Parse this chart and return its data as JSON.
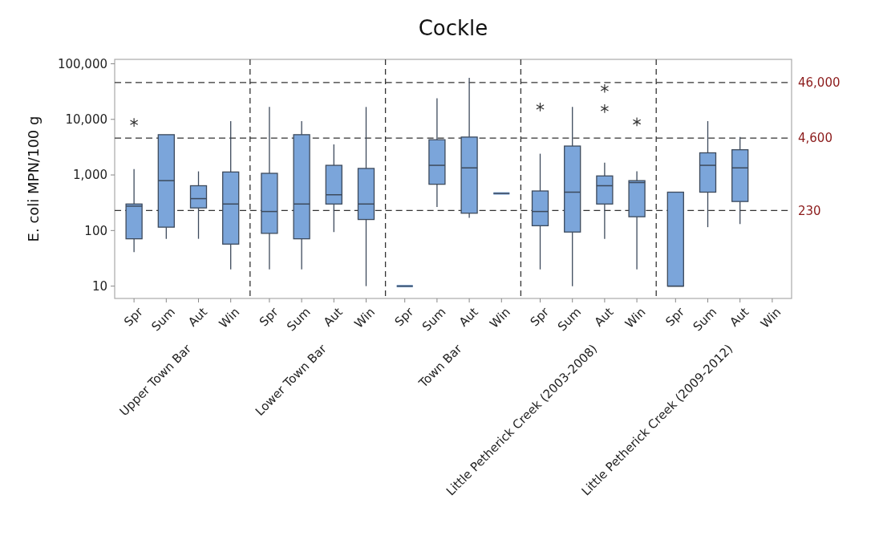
{
  "chart_data": [
    {
      "type": "box",
      "ylabel": "E. coli MPN/100 g",
      "xlabel": "Upper Town Bar",
      "categories": [
        "Spr",
        "Sum",
        "Aut",
        "Win"
      ],
      "color": "#7ba5da",
      "log": true,
      "ylim": [
        6,
        120000
      ],
      "yticks": [
        10,
        100,
        {
          "value": 1000,
          "label": "1,000"
        },
        {
          "value": 10000,
          "label": "10,000"
        },
        {
          "value": 100000,
          "label": "100,000"
        }
      ],
      "ref_lines": [
        {
          "axis": "y",
          "value": 230,
          "line_style": "dashed"
        },
        {
          "axis": "y",
          "value": 4600,
          "line_style": "dashed"
        },
        {
          "axis": "y",
          "value": 46000,
          "line_style": "dashed"
        }
      ],
      "boxes": [
        {
          "low": 41,
          "q1": 71,
          "median": 275,
          "q3": 300,
          "high": 1270,
          "outliers": [
            8800
          ]
        },
        {
          "low": 71,
          "q1": 115,
          "median": 790,
          "q3": 5300,
          "high": 5300
        },
        {
          "low": 71,
          "q1": 255,
          "median": 375,
          "q3": 640,
          "high": 1160
        },
        {
          "low": 20,
          "q1": 57,
          "median": 300,
          "q3": 1130,
          "high": 9300
        }
      ]
    },
    {
      "type": "box",
      "xlabel": "Lower Town Bar",
      "categories": [
        "Spr",
        "Sum",
        "Aut",
        "Win"
      ],
      "color": "#7ba5da",
      "log": true,
      "ylim": [
        6,
        120000
      ],
      "tick_labels": "x",
      "ref_lines": [
        {
          "axis": "y",
          "value": 230,
          "line_style": "dashed"
        },
        {
          "axis": "y",
          "value": 4600,
          "line_style": "dashed"
        },
        {
          "axis": "y",
          "value": 46000,
          "line_style": "dashed"
        }
      ],
      "boxes": [
        {
          "low": 20,
          "q1": 89,
          "median": 220,
          "q3": 1070,
          "high": 16700
        },
        {
          "low": 20,
          "q1": 71,
          "median": 300,
          "q3": 5300,
          "high": 9300
        },
        {
          "low": 94,
          "q1": 300,
          "median": 440,
          "q3": 1490,
          "high": 3540
        },
        {
          "low": 10,
          "q1": 158,
          "median": 300,
          "q3": 1310,
          "high": 16700
        }
      ]
    },
    {
      "type": "box",
      "title": "Cockle",
      "xlabel": "Town Bar",
      "categories": [
        "Spr",
        "Sum",
        "Aut",
        "Win"
      ],
      "color": "#7ba5da",
      "log": true,
      "ylim": [
        6,
        120000
      ],
      "tick_labels": "x",
      "ref_lines": [
        {
          "axis": "y",
          "value": 230,
          "line_style": "dashed"
        },
        {
          "axis": "y",
          "value": 4600,
          "line_style": "dashed"
        },
        {
          "axis": "y",
          "value": 46000,
          "line_style": "dashed"
        }
      ],
      "boxes": [
        {
          "low": 10,
          "q1": 10,
          "median": 10,
          "q3": 10,
          "high": 10
        },
        {
          "low": 265,
          "q1": 680,
          "median": 1490,
          "q3": 4300,
          "high": 24000
        },
        {
          "low": 170,
          "q1": 205,
          "median": 1340,
          "q3": 4800,
          "high": 56000
        },
        {
          "low": 465,
          "q1": 465,
          "median": 465,
          "q3": 465,
          "high": 465
        }
      ]
    },
    {
      "type": "box",
      "xlabel": "Little Petherick Creek (2003-2008)",
      "categories": [
        "Spr",
        "Sum",
        "Aut",
        "Win"
      ],
      "color": "#7ba5da",
      "log": true,
      "ylim": [
        6,
        120000
      ],
      "tick_labels": "x",
      "ref_lines": [
        {
          "axis": "y",
          "value": 230,
          "line_style": "dashed"
        },
        {
          "axis": "y",
          "value": 4600,
          "line_style": "dashed"
        },
        {
          "axis": "y",
          "value": 46000,
          "line_style": "dashed"
        }
      ],
      "boxes": [
        {
          "low": 20,
          "q1": 122,
          "median": 220,
          "q3": 515,
          "high": 2410,
          "outliers": [
            16700
          ]
        },
        {
          "low": 10,
          "q1": 94,
          "median": 490,
          "q3": 3310,
          "high": 16700
        },
        {
          "low": 71,
          "q1": 300,
          "median": 640,
          "q3": 960,
          "high": 1670,
          "outliers": [
            15600,
            36000
          ]
        },
        {
          "low": 20,
          "q1": 177,
          "median": 730,
          "q3": 790,
          "high": 1160,
          "outliers": [
            9000
          ]
        }
      ]
    },
    {
      "type": "box",
      "xlabel": "Little Petherick Creek (2009-2012)",
      "categories": [
        "Spr",
        "Sum",
        "Aut",
        "Win"
      ],
      "color": "#7ba5da",
      "log": true,
      "ylim": [
        6,
        120000
      ],
      "tick_labels": "x",
      "ref_lines": [
        {
          "axis": "y",
          "value": 230,
          "label": "230",
          "line_style": "dashed"
        },
        {
          "axis": "y",
          "value": 4600,
          "label": "4,600",
          "line_style": "dashed"
        },
        {
          "axis": "y",
          "value": 46000,
          "label": "46,000",
          "line_style": "dashed"
        }
      ],
      "boxes": [
        {
          "low": 10,
          "q1": 10,
          "median": 10,
          "q3": 490,
          "high": 490
        },
        {
          "low": 115,
          "q1": 490,
          "median": 1490,
          "q3": 2500,
          "high": 9300
        },
        {
          "low": 131,
          "q1": 333,
          "median": 1340,
          "q3": 2840,
          "high": 4800
        },
        null
      ]
    }
  ]
}
